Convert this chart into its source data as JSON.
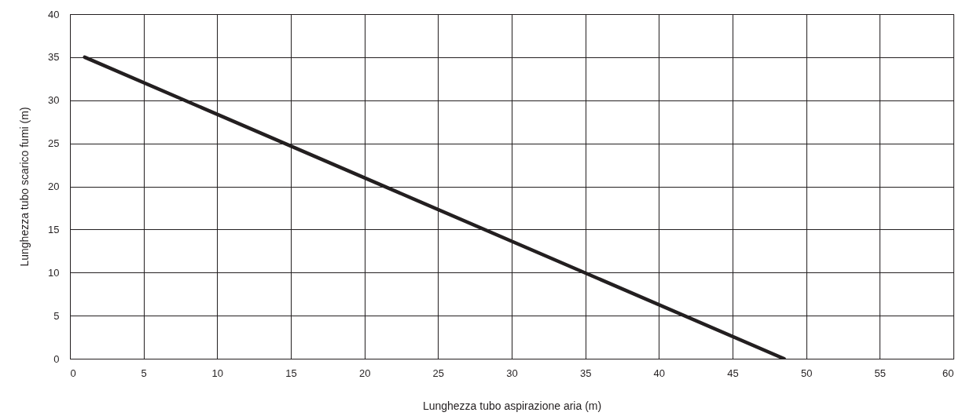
{
  "chart_data": {
    "type": "line",
    "xlabel": "Lunghezza tubo aspirazione aria (m)",
    "ylabel": "Lunghezza tubo scarico fumi (m)",
    "x": [
      1,
      48.5
    ],
    "series": [
      {
        "color": "#231f20",
        "values": [
          35,
          0
        ]
      }
    ],
    "xlim": [
      0,
      60
    ],
    "xticks": [
      0,
      5,
      10,
      15,
      20,
      25,
      30,
      35,
      40,
      45,
      50,
      55,
      60
    ],
    "ylim": [
      0,
      40
    ],
    "yticks": [
      0,
      5,
      10,
      15,
      20,
      25,
      30,
      35,
      40
    ],
    "grid": true,
    "marker": "none",
    "line_style": "solid"
  }
}
